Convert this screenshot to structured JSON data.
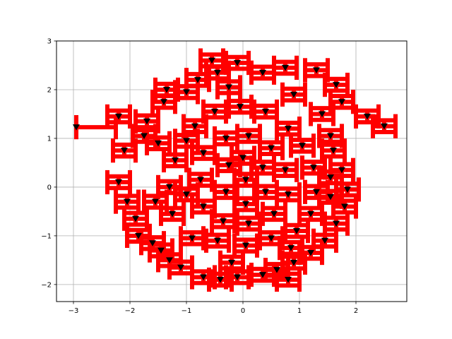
{
  "chart_data": {
    "type": "scatter",
    "title": "",
    "xlabel": "",
    "ylabel": "",
    "xlim": [
      -3.3,
      2.9
    ],
    "ylim": [
      -2.35,
      3.0
    ],
    "grid": true,
    "xticks": [
      -3,
      -2,
      -1,
      0,
      1,
      2
    ],
    "yticks": [
      -2,
      -1,
      0,
      1,
      2,
      3
    ],
    "xtick_labels": [
      "−3",
      "−2",
      "−1",
      "0",
      "1",
      "2"
    ],
    "ytick_labels": [
      "−2",
      "−1",
      "0",
      "1",
      "2",
      "3"
    ],
    "marker": "triangle-down",
    "marker_color": "#000000",
    "errorbar_color": "#ff0000",
    "points": [
      {
        "x": -2.95,
        "y": 1.23,
        "xerr": 0.0,
        "yerr": 0.0,
        "xlo": 0.0,
        "xhi": 0.7
      },
      {
        "x": -2.2,
        "y": 1.45,
        "xerr": 0.2,
        "yerr": 0.12
      },
      {
        "x": -2.1,
        "y": 0.75,
        "xerr": 0.2,
        "yerr": 0.12
      },
      {
        "x": -2.2,
        "y": 0.1,
        "xerr": 0.2,
        "yerr": 0.12
      },
      {
        "x": -2.05,
        "y": -0.3,
        "xerr": 0.2,
        "yerr": 0.12
      },
      {
        "x": -1.9,
        "y": -0.65,
        "xerr": 0.2,
        "yerr": 0.12
      },
      {
        "x": -1.85,
        "y": -1.0,
        "xerr": 0.2,
        "yerr": 0.12
      },
      {
        "x": -1.6,
        "y": -1.15,
        "xerr": 0.2,
        "yerr": 0.12
      },
      {
        "x": -1.3,
        "y": -1.5,
        "xerr": 0.2,
        "yerr": 0.12
      },
      {
        "x": -1.1,
        "y": -1.65,
        "xerr": 0.2,
        "yerr": 0.12
      },
      {
        "x": -0.7,
        "y": -1.85,
        "xerr": 0.2,
        "yerr": 0.12
      },
      {
        "x": -0.4,
        "y": -1.9,
        "xerr": 0.2,
        "yerr": 0.12
      },
      {
        "x": -0.1,
        "y": -1.85,
        "xerr": 0.2,
        "yerr": 0.12
      },
      {
        "x": 0.35,
        "y": -1.8,
        "xerr": 0.2,
        "yerr": 0.12
      },
      {
        "x": 0.8,
        "y": -1.9,
        "xerr": 0.2,
        "yerr": 0.12
      },
      {
        "x": 0.9,
        "y": -1.55,
        "xerr": 0.2,
        "yerr": 0.12
      },
      {
        "x": 1.2,
        "y": -1.35,
        "xerr": 0.2,
        "yerr": 0.12
      },
      {
        "x": 1.45,
        "y": -1.1,
        "xerr": 0.2,
        "yerr": 0.12
      },
      {
        "x": 1.65,
        "y": -0.75,
        "xerr": 0.2,
        "yerr": 0.12
      },
      {
        "x": 1.8,
        "y": -0.4,
        "xerr": 0.2,
        "yerr": 0.12
      },
      {
        "x": 1.85,
        "y": -0.05,
        "xerr": 0.2,
        "yerr": 0.12
      },
      {
        "x": 1.75,
        "y": 0.35,
        "xerr": 0.2,
        "yerr": 0.12
      },
      {
        "x": 1.6,
        "y": 0.75,
        "xerr": 0.2,
        "yerr": 0.12
      },
      {
        "x": 1.55,
        "y": 1.05,
        "xerr": 0.2,
        "yerr": 0.12
      },
      {
        "x": 1.75,
        "y": 1.75,
        "xerr": 0.2,
        "yerr": 0.12
      },
      {
        "x": 2.2,
        "y": 1.45,
        "xerr": 0.2,
        "yerr": 0.12
      },
      {
        "x": 2.5,
        "y": 1.25,
        "xerr": 0.2,
        "yerr": 0.12
      },
      {
        "x": 1.65,
        "y": 2.1,
        "xerr": 0.2,
        "yerr": 0.12
      },
      {
        "x": 1.3,
        "y": 2.4,
        "xerr": 0.2,
        "yerr": 0.12
      },
      {
        "x": 0.75,
        "y": 2.45,
        "xerr": 0.2,
        "yerr": 0.12
      },
      {
        "x": 0.35,
        "y": 2.35,
        "xerr": 0.2,
        "yerr": 0.12
      },
      {
        "x": -0.1,
        "y": 2.55,
        "xerr": 0.2,
        "yerr": 0.12
      },
      {
        "x": -0.45,
        "y": 2.35,
        "xerr": 0.2,
        "yerr": 0.12
      },
      {
        "x": -0.8,
        "y": 2.2,
        "xerr": 0.2,
        "yerr": 0.12
      },
      {
        "x": -1.0,
        "y": 1.95,
        "xerr": 0.2,
        "yerr": 0.12
      },
      {
        "x": -1.4,
        "y": 1.75,
        "xerr": 0.2,
        "yerr": 0.12
      },
      {
        "x": -1.7,
        "y": 1.35,
        "xerr": 0.2,
        "yerr": 0.12
      },
      {
        "x": -1.75,
        "y": 1.05,
        "xerr": 0.2,
        "yerr": 0.12
      },
      {
        "x": -1.2,
        "y": 0.55,
        "xerr": 0.2,
        "yerr": 0.12
      },
      {
        "x": -1.3,
        "y": 0.0,
        "xerr": 0.2,
        "yerr": 0.12
      },
      {
        "x": -1.25,
        "y": -0.55,
        "xerr": 0.2,
        "yerr": 0.12
      },
      {
        "x": -0.9,
        "y": -1.05,
        "xerr": 0.2,
        "yerr": 0.12
      },
      {
        "x": -0.45,
        "y": -1.1,
        "xerr": 0.2,
        "yerr": 0.12
      },
      {
        "x": 0.05,
        "y": -1.2,
        "xerr": 0.2,
        "yerr": 0.12
      },
      {
        "x": 0.5,
        "y": -1.05,
        "xerr": 0.2,
        "yerr": 0.12
      },
      {
        "x": 0.95,
        "y": -0.9,
        "xerr": 0.2,
        "yerr": 0.12
      },
      {
        "x": 1.2,
        "y": -0.55,
        "xerr": 0.2,
        "yerr": 0.12
      },
      {
        "x": 1.3,
        "y": -0.1,
        "xerr": 0.2,
        "yerr": 0.12
      },
      {
        "x": 1.25,
        "y": 0.4,
        "xerr": 0.2,
        "yerr": 0.12
      },
      {
        "x": 1.05,
        "y": 0.85,
        "xerr": 0.2,
        "yerr": 0.12
      },
      {
        "x": 0.8,
        "y": 1.2,
        "xerr": 0.2,
        "yerr": 0.12
      },
      {
        "x": 0.4,
        "y": 1.55,
        "xerr": 0.2,
        "yerr": 0.12
      },
      {
        "x": -0.05,
        "y": 1.65,
        "xerr": 0.2,
        "yerr": 0.12
      },
      {
        "x": -0.5,
        "y": 1.55,
        "xerr": 0.2,
        "yerr": 0.12
      },
      {
        "x": -0.85,
        "y": 1.25,
        "xerr": 0.2,
        "yerr": 0.12
      },
      {
        "x": -0.7,
        "y": 0.7,
        "xerr": 0.2,
        "yerr": 0.12
      },
      {
        "x": -0.75,
        "y": 0.15,
        "xerr": 0.2,
        "yerr": 0.12
      },
      {
        "x": -0.7,
        "y": -0.4,
        "xerr": 0.2,
        "yerr": 0.12
      },
      {
        "x": -0.35,
        "y": -0.7,
        "xerr": 0.2,
        "yerr": 0.12
      },
      {
        "x": 0.1,
        "y": -0.75,
        "xerr": 0.2,
        "yerr": 0.12
      },
      {
        "x": 0.55,
        "y": -0.55,
        "xerr": 0.2,
        "yerr": 0.12
      },
      {
        "x": 0.8,
        "y": -0.15,
        "xerr": 0.2,
        "yerr": 0.12
      },
      {
        "x": 0.75,
        "y": 0.35,
        "xerr": 0.2,
        "yerr": 0.12
      },
      {
        "x": 0.5,
        "y": 0.8,
        "xerr": 0.2,
        "yerr": 0.12
      },
      {
        "x": 0.1,
        "y": 1.05,
        "xerr": 0.2,
        "yerr": 0.12
      },
      {
        "x": -0.3,
        "y": 1.0,
        "xerr": 0.2,
        "yerr": 0.12
      },
      {
        "x": -0.25,
        "y": 0.45,
        "xerr": 0.2,
        "yerr": 0.12
      },
      {
        "x": -0.3,
        "y": -0.1,
        "xerr": 0.2,
        "yerr": 0.12
      },
      {
        "x": 0.05,
        "y": -0.35,
        "xerr": 0.2,
        "yerr": 0.12
      },
      {
        "x": 0.4,
        "y": -0.1,
        "xerr": 0.2,
        "yerr": 0.12
      },
      {
        "x": 0.35,
        "y": 0.4,
        "xerr": 0.2,
        "yerr": 0.12
      },
      {
        "x": 0.0,
        "y": 0.6,
        "xerr": 0.2,
        "yerr": 0.12
      },
      {
        "x": 0.05,
        "y": 0.15,
        "xerr": 0.2,
        "yerr": 0.12
      },
      {
        "x": -0.55,
        "y": 2.6,
        "xerr": 0.2,
        "yerr": 0.12
      },
      {
        "x": -1.35,
        "y": 2.0,
        "xerr": 0.2,
        "yerr": 0.12
      },
      {
        "x": -1.5,
        "y": 0.9,
        "xerr": 0.2,
        "yerr": 0.12
      },
      {
        "x": -1.55,
        "y": -0.3,
        "xerr": 0.2,
        "yerr": 0.12
      },
      {
        "x": -1.45,
        "y": -1.3,
        "xerr": 0.2,
        "yerr": 0.12
      },
      {
        "x": -0.2,
        "y": -1.55,
        "xerr": 0.2,
        "yerr": 0.12
      },
      {
        "x": 0.6,
        "y": -1.7,
        "xerr": 0.2,
        "yerr": 0.12
      },
      {
        "x": 1.55,
        "y": -0.2,
        "xerr": 0.2,
        "yerr": 0.12
      },
      {
        "x": 1.4,
        "y": 1.5,
        "xerr": 0.2,
        "yerr": 0.12
      },
      {
        "x": 0.9,
        "y": 1.9,
        "xerr": 0.2,
        "yerr": 0.12
      },
      {
        "x": -0.25,
        "y": 2.05,
        "xerr": 0.2,
        "yerr": 0.12
      },
      {
        "x": -1.0,
        "y": 0.95,
        "xerr": 0.2,
        "yerr": 0.12
      },
      {
        "x": -1.0,
        "y": -0.15,
        "xerr": 0.2,
        "yerr": 0.12
      },
      {
        "x": 0.85,
        "y": -1.25,
        "xerr": 0.2,
        "yerr": 0.12
      },
      {
        "x": 1.55,
        "y": 0.2,
        "xerr": 0.2,
        "yerr": 0.12
      }
    ]
  }
}
